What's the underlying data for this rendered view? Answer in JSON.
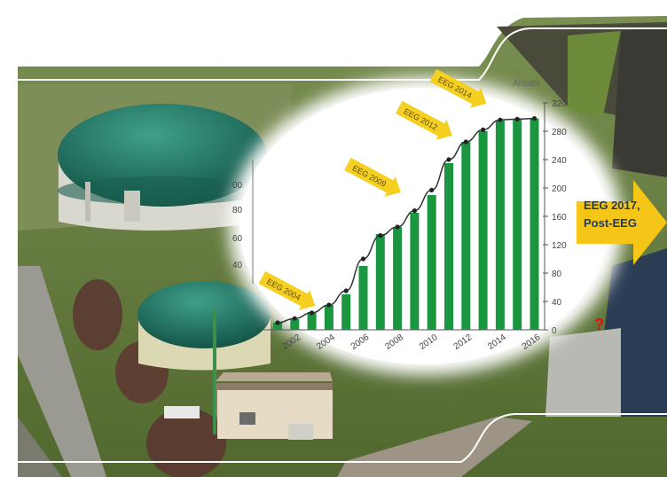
{
  "chart_data": {
    "type": "bar",
    "title": "",
    "xlabel": "",
    "ylabel": "Anzahl",
    "ylim": [
      0,
      320
    ],
    "yticks": [
      0,
      40,
      80,
      120,
      160,
      200,
      240,
      280,
      320
    ],
    "xtick_labels": [
      "2002",
      "2004",
      "2006",
      "2008",
      "2010",
      "2012",
      "2014",
      "2016"
    ],
    "categories": [
      "2001",
      "2002",
      "2003",
      "2004",
      "2005",
      "2006",
      "2007",
      "2008",
      "2009",
      "2010",
      "2011",
      "2012",
      "2013",
      "2014",
      "2015",
      "2016"
    ],
    "values": [
      10,
      15,
      25,
      35,
      50,
      90,
      135,
      145,
      165,
      190,
      235,
      265,
      280,
      295,
      297,
      298
    ],
    "line_values": [
      10,
      16,
      24,
      35,
      55,
      100,
      133,
      145,
      168,
      197,
      240,
      265,
      282,
      296,
      297,
      298
    ],
    "bar_color": "#1a9641",
    "line_color": "#333333",
    "grid": false,
    "annotations": [
      {
        "text": "EEG 2004",
        "year": "2003",
        "y": 55
      },
      {
        "text": "EEG 2009",
        "year": "2008",
        "y": 215
      },
      {
        "text": "EEG 2012",
        "year": "2011",
        "y": 295
      },
      {
        "text": "EEG 2014",
        "year": "2013",
        "y": 340
      }
    ],
    "left_axis_fragments": [
      "00",
      "80",
      "60",
      "40"
    ]
  },
  "callout": {
    "line1": "EEG 2017,",
    "line2": "Post-EEG"
  },
  "question_mark": "?",
  "colors": {
    "arrow": "#f5c518",
    "annotation_fill": "#f5d020",
    "sky": "#ffffff",
    "grass": "#6f8a3e",
    "dome": "#1f6e5e"
  }
}
